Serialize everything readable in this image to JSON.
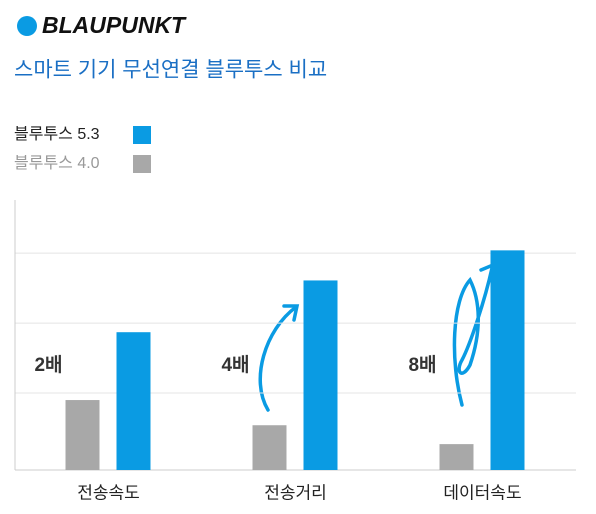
{
  "brand": "BLAUPUNKT",
  "chart_data": {
    "type": "bar",
    "title": "스마트 기기 무선연결 블루투스 비교",
    "categories": [
      "전송속도",
      "전송거리",
      "데이터속도"
    ],
    "series": [
      {
        "name": "블루투스 5.3",
        "color": "#0a9be3",
        "values": [
          1.97,
          2.71,
          3.14
        ]
      },
      {
        "name": "블루투스 4.0",
        "color": "#a8a8a8",
        "values": [
          1.0,
          0.64,
          0.37
        ]
      }
    ],
    "annotations": [
      "2배",
      "4배",
      "8배"
    ],
    "ylim": [
      0,
      3.86
    ],
    "gridlines": [
      1.1,
      2.1,
      3.1
    ],
    "grid": true
  }
}
